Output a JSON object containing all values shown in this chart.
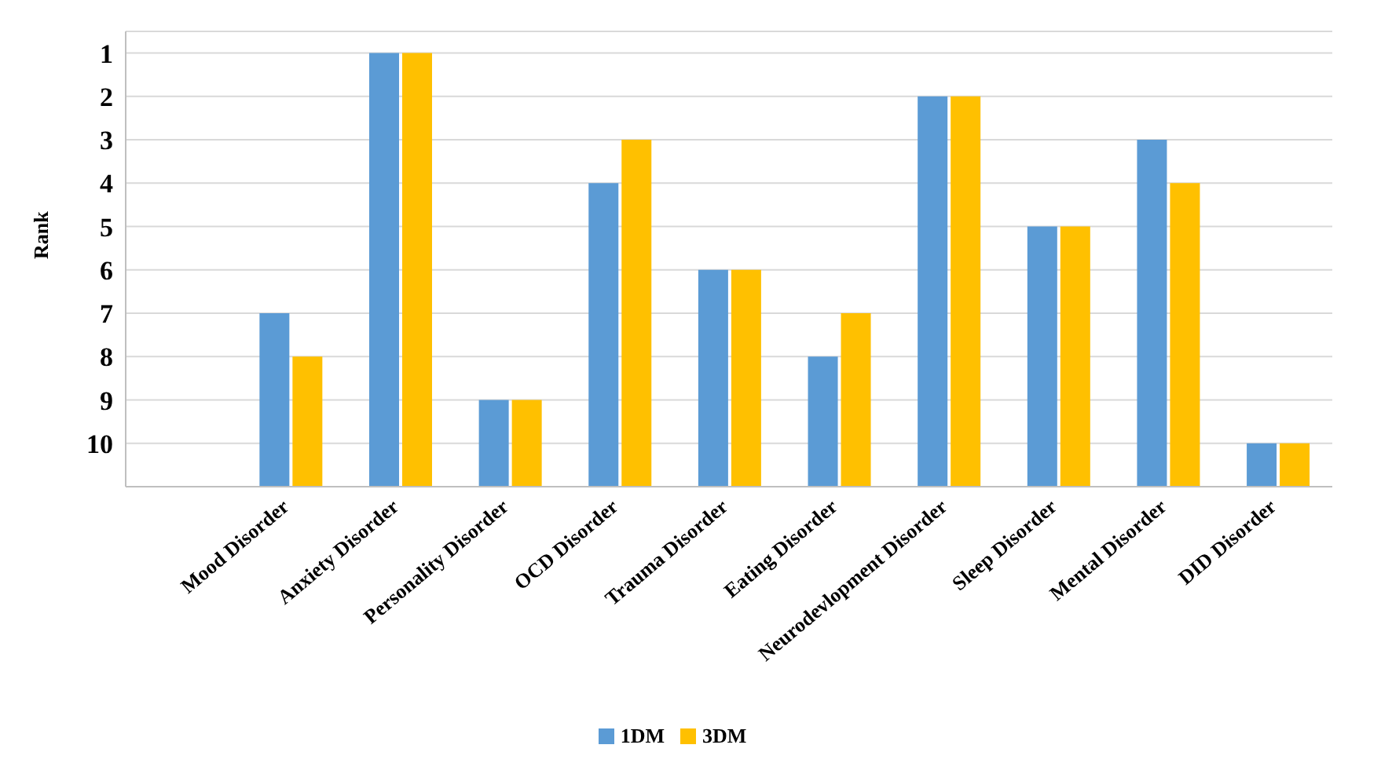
{
  "chart_data": {
    "type": "bar",
    "ylabel": "Rank",
    "categories": [
      null,
      "Mood Disorder",
      "Anxiety Disorder",
      "Personality Disorder",
      "OCD Disorder",
      "Trauma  Disorder",
      "Eating Disorder",
      "Neurodevlopment Disorder",
      "Sleep Disorder",
      "Mental Disorder",
      "DID Disorder"
    ],
    "series": [
      {
        "name": "1DM",
        "color": "#5b9bd5",
        "base": [
          null,
          11,
          11,
          11,
          11,
          11,
          11,
          11,
          11,
          11,
          11
        ],
        "values": [
          null,
          -4,
          -10,
          -2,
          -7,
          -5,
          -3,
          -9,
          -6,
          -8,
          -1
        ]
      },
      {
        "name": "3DM",
        "color": "#ffc000",
        "base": [
          null,
          11,
          11,
          11,
          11,
          11,
          11,
          11,
          11,
          11,
          11
        ],
        "values": [
          null,
          -3,
          -10,
          -2,
          -8,
          -5,
          -4,
          -9,
          -6,
          -7,
          -1
        ]
      }
    ],
    "ylim": [
      11,
      0.5
    ],
    "yticks": [
      1,
      2,
      3,
      4,
      5,
      6,
      7,
      8,
      9,
      10
    ],
    "grid": "y",
    "legend": "bottom"
  }
}
